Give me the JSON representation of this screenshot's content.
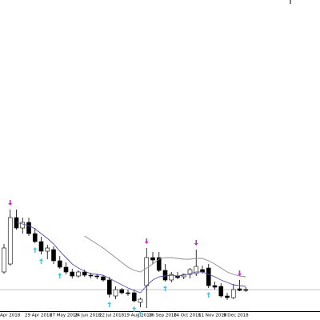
{
  "chart_data": {
    "type": "candlestick",
    "categories": [
      "Apr 2018",
      null,
      null,
      null,
      "29 Apr 2018",
      null,
      null,
      null,
      "27 May 2018",
      null,
      null,
      null,
      "24 Jun 2018",
      null,
      null,
      null,
      "22 Jul 2018",
      null,
      null,
      null,
      "19 Aug 2018",
      null,
      null,
      null,
      "16 Sep 2018",
      null,
      null,
      null,
      "14 Oct 2018",
      null,
      null,
      null,
      "11 Nov 2018",
      null,
      null,
      null,
      "9 Dec 2018",
      null,
      null,
      null
    ],
    "open": [
      50,
      60,
      118,
      105,
      112,
      98,
      88,
      76,
      78,
      64,
      56,
      50,
      45,
      50,
      46,
      45,
      44,
      40,
      20,
      28,
      24,
      24,
      12,
      33,
      68,
      68,
      52,
      40,
      45,
      44,
      47,
      48,
      53,
      55,
      33,
      32,
      20,
      18,
      29,
      28
    ],
    "high": [
      85,
      128,
      128,
      118,
      118,
      105,
      94,
      84,
      82,
      70,
      62,
      54,
      52,
      53,
      49,
      48,
      46,
      44,
      32,
      30,
      28,
      28,
      18,
      80,
      75,
      75,
      60,
      50,
      50,
      48,
      55,
      78,
      58,
      60,
      38,
      36,
      24,
      35,
      40,
      31
    ],
    "low": [
      48,
      58,
      103,
      98,
      95,
      86,
      72,
      66,
      60,
      54,
      47,
      42,
      43,
      44,
      42,
      41,
      38,
      18,
      16,
      22,
      20,
      12,
      6,
      5,
      60,
      50,
      38,
      37,
      41,
      41,
      42,
      45,
      48,
      30,
      28,
      18,
      15,
      16,
      26,
      25
    ],
    "close": [
      80,
      118,
      105,
      112,
      98,
      88,
      76,
      80,
      64,
      56,
      50,
      45,
      50,
      46,
      45,
      44,
      40,
      22,
      28,
      24,
      23,
      14,
      16,
      68,
      65,
      52,
      40,
      47,
      43,
      47,
      53,
      57,
      50,
      33,
      31,
      20,
      18,
      28,
      27,
      27
    ],
    "up_color": "#ffffff",
    "down_color": "#000000",
    "wick_color": "#000000",
    "lines": [
      {
        "color": "#5a4fa8",
        "values": [
          null,
          null,
          112,
          110,
          108,
          104,
          98,
          92,
          85,
          76,
          68,
          60,
          55,
          51,
          48,
          47,
          46,
          42,
          38,
          34,
          30,
          27,
          24,
          33,
          40,
          44,
          45,
          46,
          45,
          46,
          48,
          50,
          50,
          47,
          44,
          40,
          37,
          34,
          33,
          32
        ]
      },
      {
        "color": "#8c8c8c",
        "values": [
          null,
          null,
          null,
          null,
          null,
          null,
          null,
          null,
          null,
          null,
          null,
          null,
          null,
          95,
          90,
          85,
          80,
          74,
          68,
          62,
          56,
          52,
          50,
          55,
          60,
          66,
          68,
          68,
          67,
          66,
          66,
          67,
          67,
          64,
          60,
          55,
          50,
          47,
          45,
          44
        ]
      }
    ],
    "down_arrows": [
      1,
      23,
      31,
      38
    ],
    "down_arrow_color": "#c030c8",
    "up_arrows": [
      5,
      6,
      9,
      17,
      21,
      22,
      26,
      33
    ],
    "up_arrow_color": "#40c8e8",
    "hline": 28,
    "hline_color": "#b0b0b0",
    "ylim": [
      0,
      390
    ]
  }
}
